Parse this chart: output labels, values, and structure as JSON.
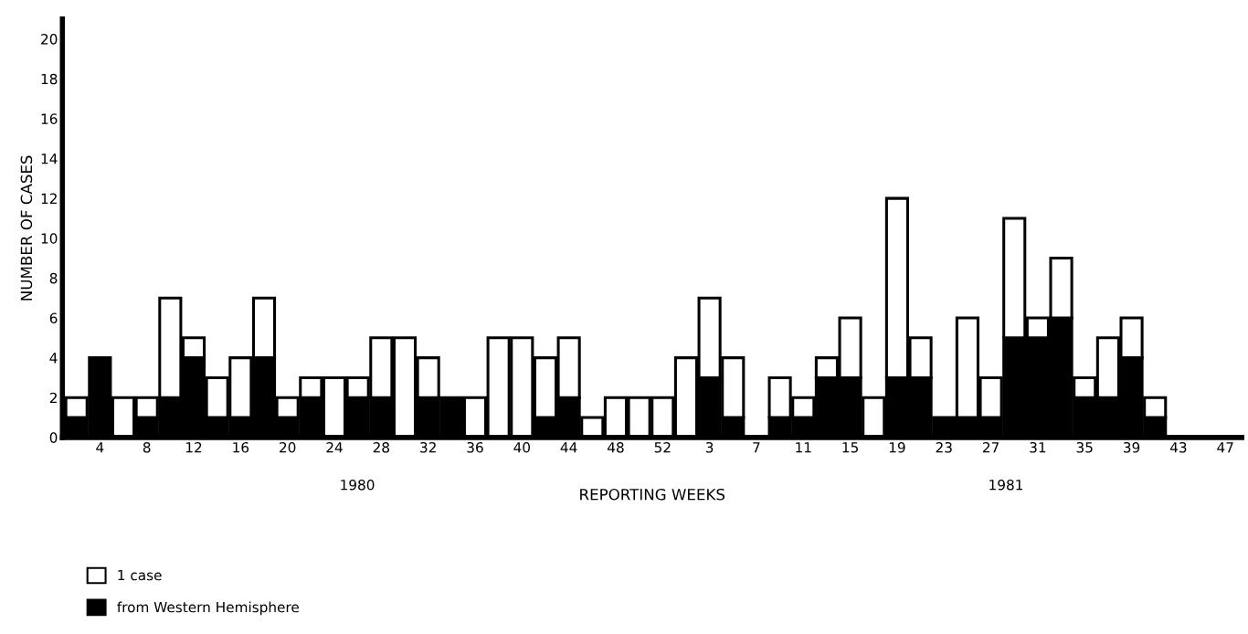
{
  "chart_data": {
    "type": "bar",
    "stacked": true,
    "categories": [
      null,
      "4",
      null,
      "8",
      null,
      "12",
      null,
      "16",
      null,
      "20",
      null,
      "24",
      null,
      "28",
      null,
      "32",
      null,
      "36",
      null,
      "40",
      null,
      "44",
      null,
      "48",
      null,
      "52",
      null,
      "3",
      null,
      "7",
      null,
      "11",
      null,
      "15",
      null,
      "19",
      null,
      "23",
      null,
      "27",
      null,
      "31",
      null,
      "35",
      null,
      "39",
      null,
      "43",
      null,
      "47"
    ],
    "series": [
      {
        "name": "from Western Hemisphere",
        "color": "#000000",
        "values": [
          1,
          4,
          0,
          1,
          2,
          4,
          1,
          1,
          4,
          1,
          2,
          0,
          2,
          2,
          0,
          2,
          2,
          0,
          0,
          0,
          1,
          2,
          0,
          0,
          0,
          0,
          0,
          3,
          1,
          0,
          1,
          1,
          3,
          3,
          0,
          3,
          3,
          1,
          1,
          1,
          5,
          5,
          6,
          2,
          2,
          4,
          1,
          0,
          0,
          0
        ]
      },
      {
        "name": "1 case",
        "color": "#ffffff",
        "values": [
          1,
          0,
          2,
          1,
          5,
          1,
          2,
          3,
          3,
          1,
          1,
          3,
          1,
          3,
          5,
          2,
          0,
          2,
          5,
          5,
          3,
          3,
          1,
          2,
          2,
          2,
          4,
          4,
          3,
          0,
          2,
          1,
          1,
          3,
          2,
          9,
          2,
          0,
          5,
          2,
          6,
          1,
          3,
          1,
          3,
          2,
          1,
          0,
          0,
          0
        ]
      }
    ],
    "ylim": [
      0,
      21
    ],
    "yticks": [
      0,
      2,
      4,
      6,
      8,
      10,
      12,
      14,
      16,
      18,
      20
    ],
    "xlabel": "REPORTING WEEKS",
    "ylabel": "NUMBER OF CASES",
    "annotations": [
      "1980",
      "1981"
    ],
    "legend": "bottom left",
    "grid": false
  }
}
